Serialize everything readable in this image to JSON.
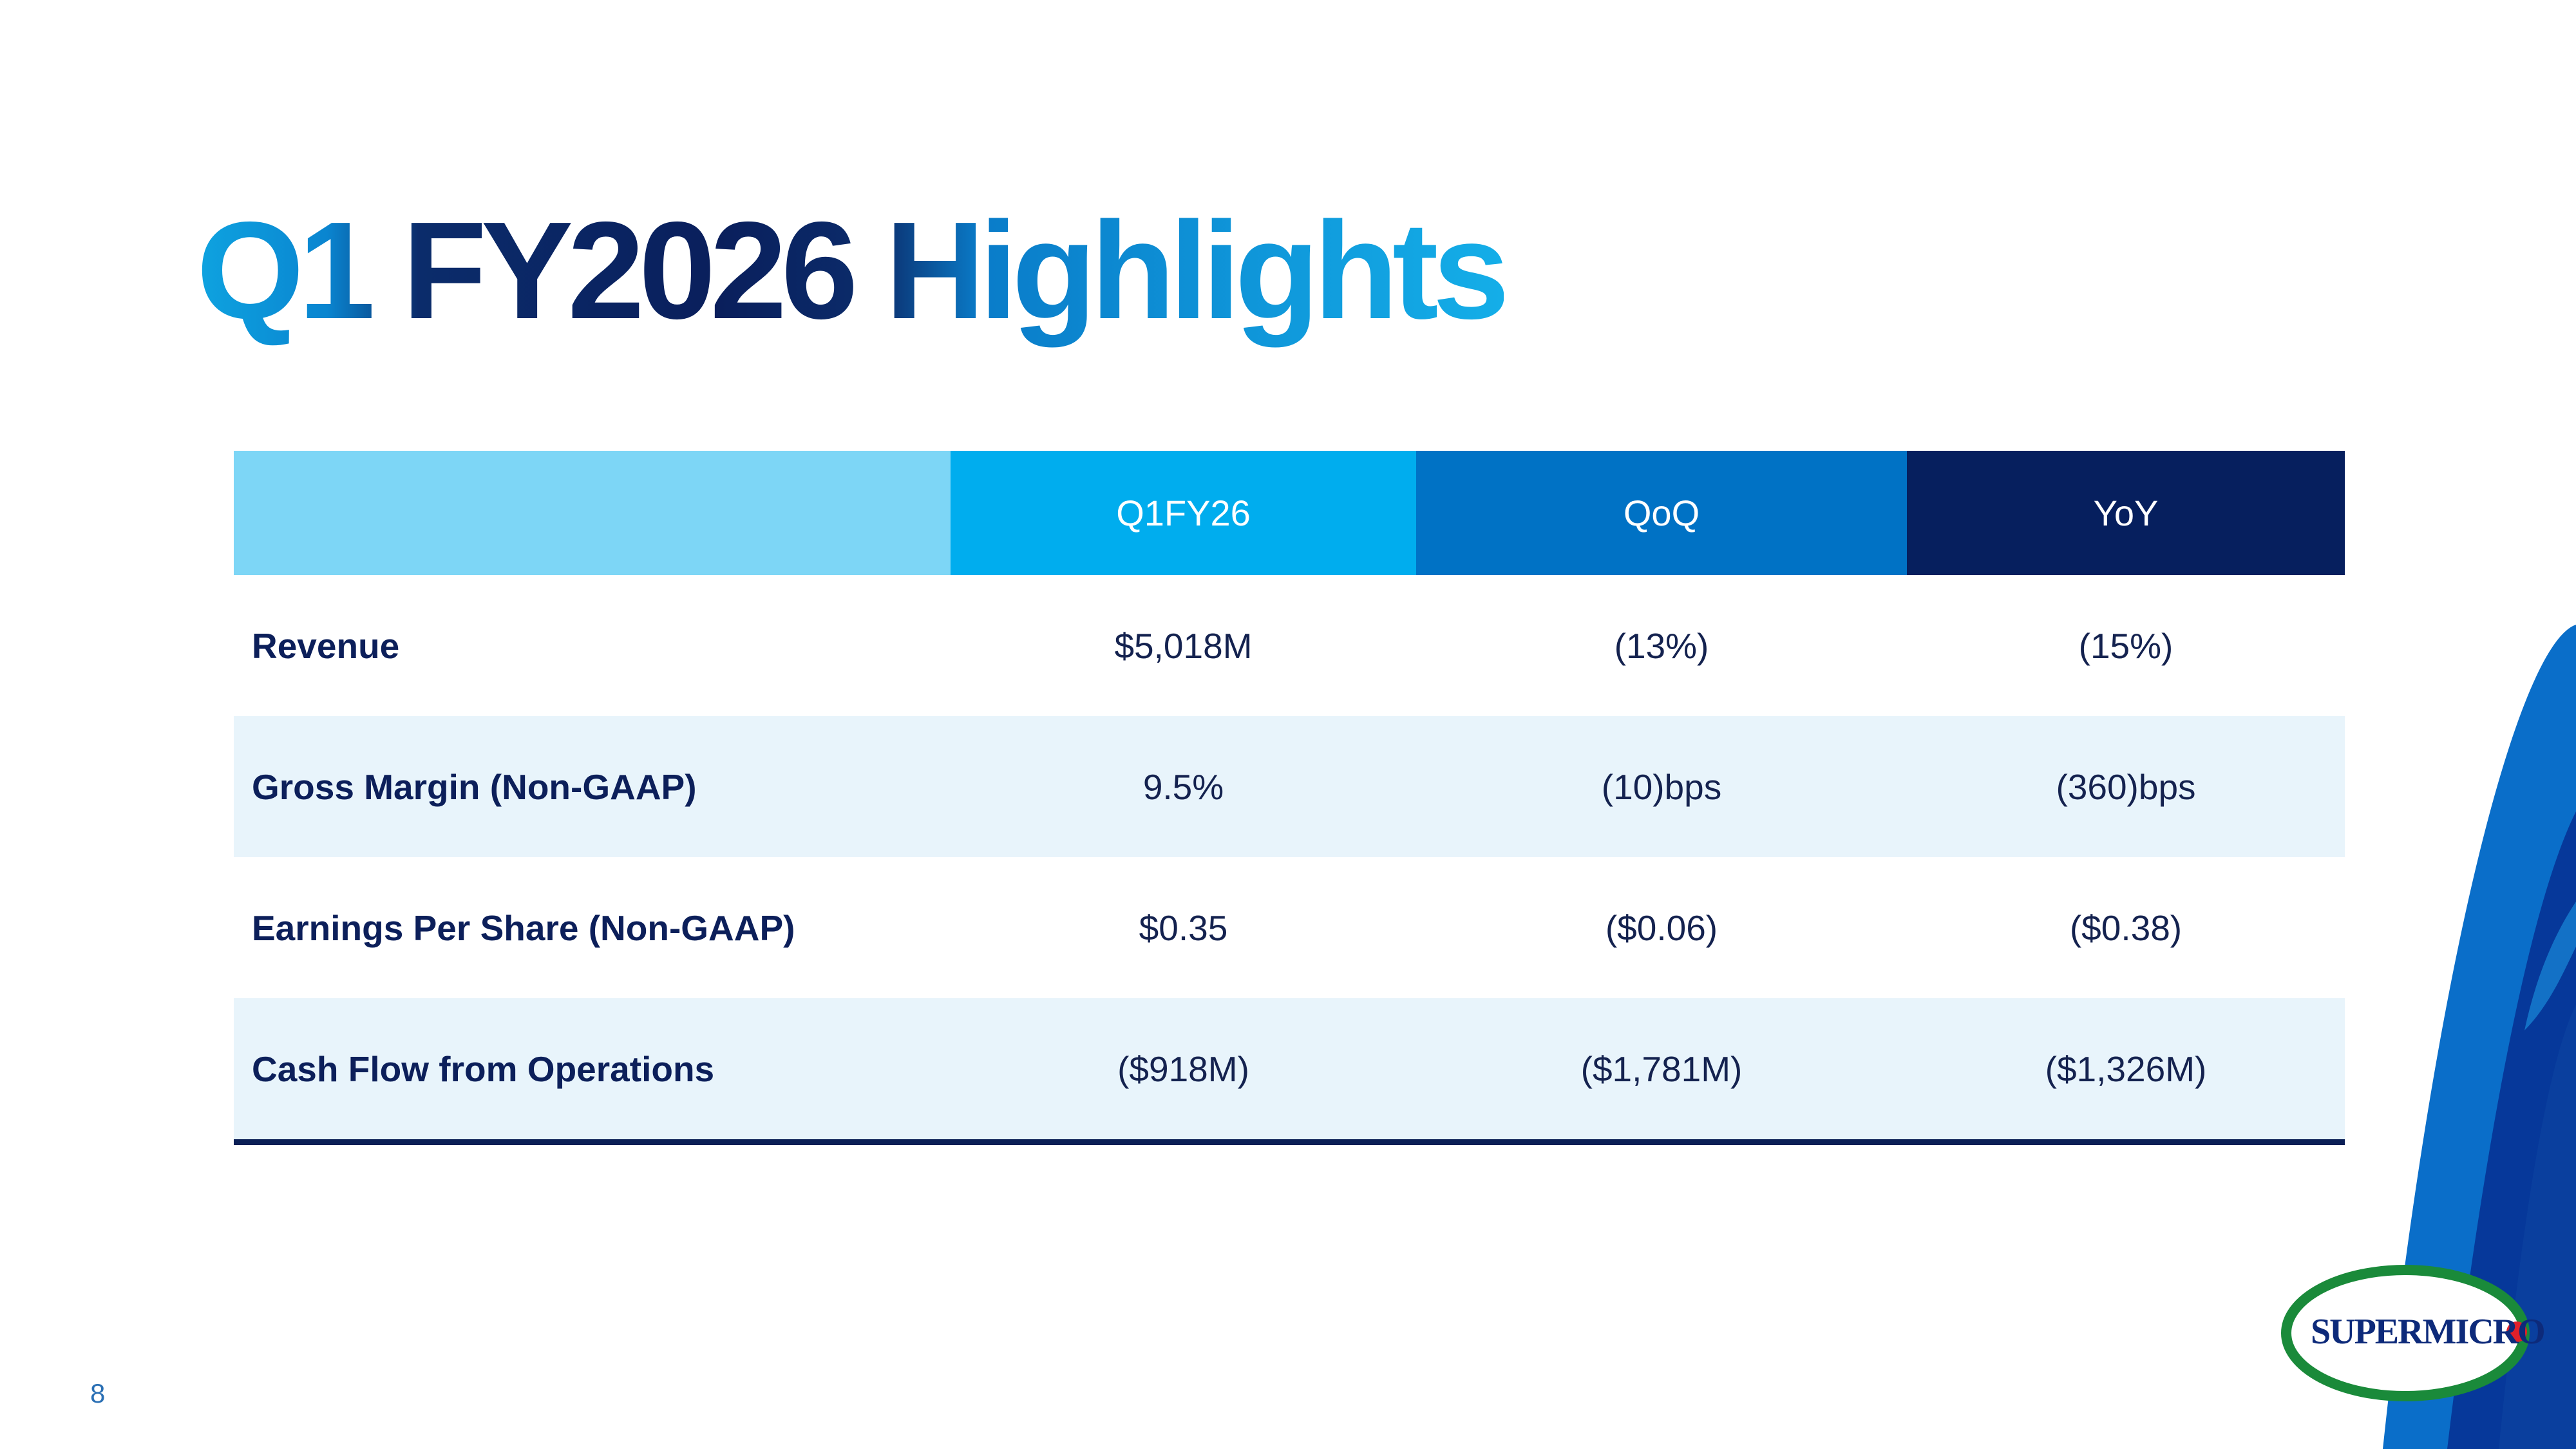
{
  "slide": {
    "title": "Q1 FY2026 Highlights",
    "page_number": "8"
  },
  "table": {
    "headers": [
      "",
      "Q1FY26",
      "QoQ",
      "YoY"
    ],
    "rows": [
      {
        "label": "Revenue",
        "values": [
          "$5,018M",
          "(13%)",
          "(15%)"
        ]
      },
      {
        "label": "Gross Margin (Non-GAAP)",
        "values": [
          "9.5%",
          "(10)bps",
          "(360)bps"
        ]
      },
      {
        "label": "Earnings Per Share (Non-GAAP)",
        "values": [
          "$0.35",
          "($0.06)",
          "($0.38)"
        ]
      },
      {
        "label": "Cash Flow from Operations",
        "values": [
          "($918M)",
          "($1,781M)",
          "($1,326M)"
        ]
      }
    ]
  },
  "logo": {
    "text": "SUPERMICRO",
    "colors": {
      "ring": "#1a8a3a",
      "text": "#0d2a7a",
      "dot": "#e0202a"
    }
  },
  "colors": {
    "header_label": "#7dd6f6",
    "header_q1": "#00adee",
    "header_qoq": "#0072c5",
    "header_yoy": "#061f5e",
    "row_shade": "#e8f4fb",
    "text_dark": "#0c1f5a"
  }
}
